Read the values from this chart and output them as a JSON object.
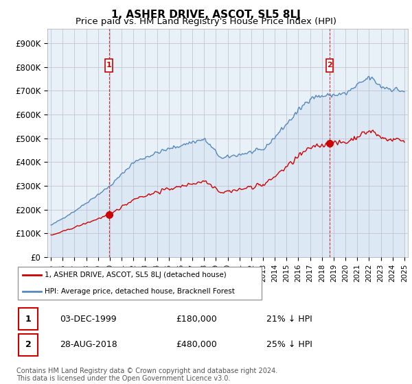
{
  "title": "1, ASHER DRIVE, ASCOT, SL5 8LJ",
  "subtitle": "Price paid vs. HM Land Registry's House Price Index (HPI)",
  "title_fontsize": 11,
  "subtitle_fontsize": 9.5,
  "ylabel_ticks": [
    "£0",
    "£100K",
    "£200K",
    "£300K",
    "£400K",
    "£500K",
    "£600K",
    "£700K",
    "£800K",
    "£900K"
  ],
  "ytick_values": [
    0,
    100000,
    200000,
    300000,
    400000,
    500000,
    600000,
    700000,
    800000,
    900000
  ],
  "ylim": [
    0,
    960000
  ],
  "xlim_start": 1994.7,
  "xlim_end": 2025.3,
  "hpi_color": "#5588bb",
  "hpi_fill_color": "#ddeeff",
  "sale_color": "#cc0000",
  "sale1_label": "1",
  "sale2_label": "2",
  "sale1_x": 1999.92,
  "sale1_y": 180000,
  "sale2_x": 2018.67,
  "sale2_y": 480000,
  "legend_label_red": "1, ASHER DRIVE, ASCOT, SL5 8LJ (detached house)",
  "legend_label_blue": "HPI: Average price, detached house, Bracknell Forest",
  "table_row1": [
    "1",
    "03-DEC-1999",
    "£180,000",
    "21% ↓ HPI"
  ],
  "table_row2": [
    "2",
    "28-AUG-2018",
    "£480,000",
    "25% ↓ HPI"
  ],
  "footnote": "Contains HM Land Registry data © Crown copyright and database right 2024.\nThis data is licensed under the Open Government Licence v3.0.",
  "bg_color": "#ffffff",
  "grid_color": "#cccccc",
  "marker_box_color": "#cc0000",
  "xtick_years": [
    1995,
    1996,
    1997,
    1998,
    1999,
    2000,
    2001,
    2002,
    2003,
    2004,
    2005,
    2006,
    2007,
    2008,
    2009,
    2010,
    2011,
    2012,
    2013,
    2014,
    2015,
    2016,
    2017,
    2018,
    2019,
    2020,
    2021,
    2022,
    2023,
    2024,
    2025
  ]
}
